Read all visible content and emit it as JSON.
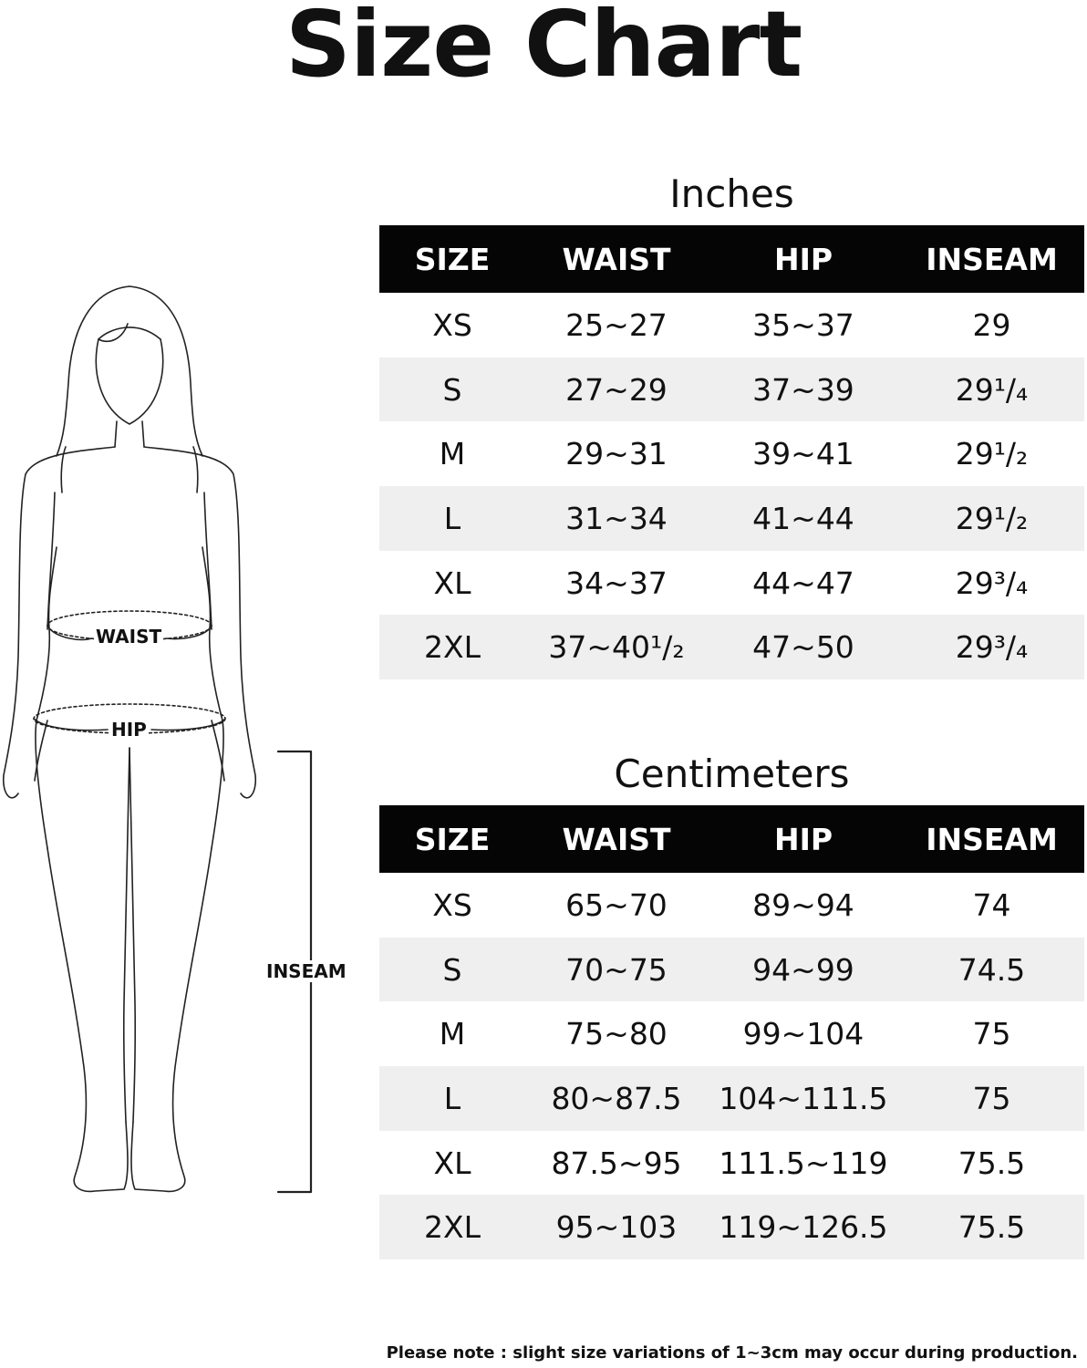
{
  "title": "Size Chart",
  "figure": {
    "waist_label": "WAIST",
    "hip_label": "HIP",
    "inseam_label": "INSEAM"
  },
  "inches": {
    "title": "Inches",
    "headers": [
      "SIZE",
      "WAIST",
      "HIP",
      "INSEAM"
    ],
    "rows": [
      [
        "XS",
        "25~27",
        "35~37",
        "29"
      ],
      [
        "S",
        "27~29",
        "37~39",
        "29¹/₄"
      ],
      [
        "M",
        "29~31",
        "39~41",
        "29¹/₂"
      ],
      [
        "L",
        "31~34",
        "41~44",
        "29¹/₂"
      ],
      [
        "XL",
        "34~37",
        "44~47",
        "29³/₄"
      ],
      [
        "2XL",
        "37~40¹/₂",
        "47~50",
        "29³/₄"
      ]
    ]
  },
  "centimeters": {
    "title": "Centimeters",
    "headers": [
      "SIZE",
      "WAIST",
      "HIP",
      "INSEAM"
    ],
    "rows": [
      [
        "XS",
        "65~70",
        "89~94",
        "74"
      ],
      [
        "S",
        "70~75",
        "94~99",
        "74.5"
      ],
      [
        "M",
        "75~80",
        "99~104",
        "75"
      ],
      [
        "L",
        "80~87.5",
        "104~111.5",
        "75"
      ],
      [
        "XL",
        "87.5~95",
        "111.5~119",
        "75.5"
      ],
      [
        "2XL",
        "95~103",
        "119~126.5",
        "75.5"
      ]
    ]
  },
  "note": "Please note : slight size variations of 1~3cm may occur during production."
}
